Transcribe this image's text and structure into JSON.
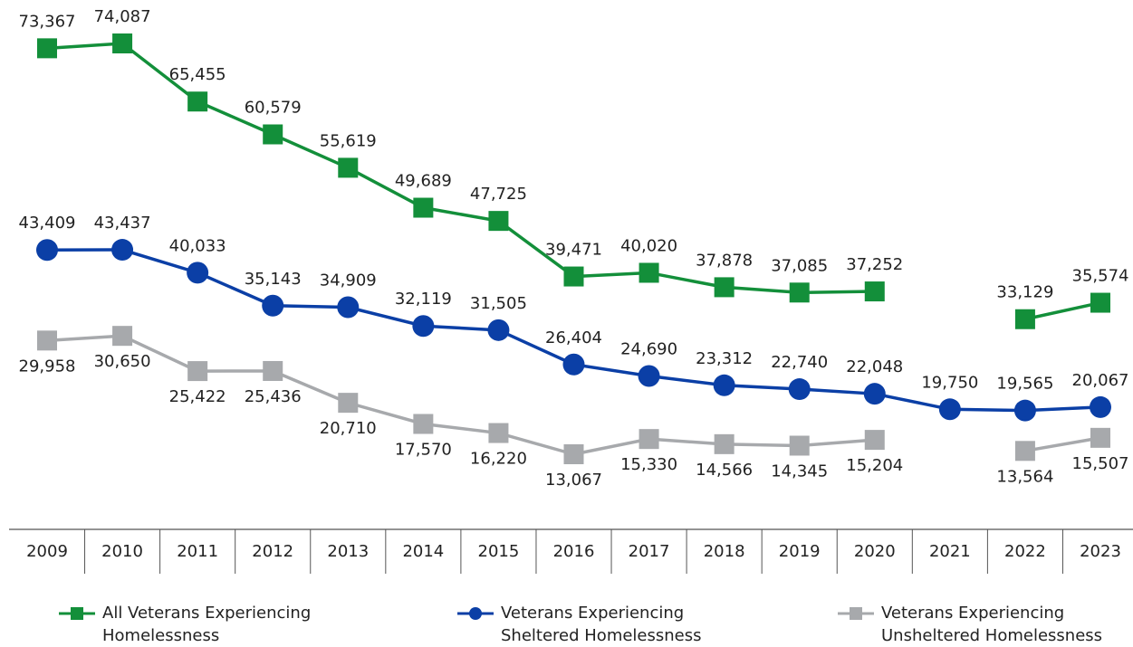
{
  "chart_data": {
    "type": "line",
    "categories": [
      "2009",
      "2010",
      "2011",
      "2012",
      "2013",
      "2014",
      "2015",
      "2016",
      "2017",
      "2018",
      "2019",
      "2020",
      "2021",
      "2022",
      "2023"
    ],
    "series": [
      {
        "name": "All Veterans Experiencing Homelessness",
        "color": "#138f3a",
        "marker": "square",
        "values": [
          73367,
          74087,
          65455,
          60579,
          55619,
          49689,
          47725,
          39471,
          40020,
          37878,
          37085,
          37252,
          null,
          33129,
          35574
        ],
        "value_labels": [
          "73,367",
          "74,087",
          "65,455",
          "60,579",
          "55,619",
          "49,689",
          "47,725",
          "39,471",
          "40,020",
          "37,878",
          "37,085",
          "37,252",
          null,
          "33,129",
          "35,574"
        ]
      },
      {
        "name": "Veterans Experiencing Sheltered Homelessness",
        "color": "#0b3fa6",
        "marker": "circle",
        "values": [
          43409,
          43437,
          40033,
          35143,
          34909,
          32119,
          31505,
          26404,
          24690,
          23312,
          22740,
          22048,
          19750,
          19565,
          20067
        ],
        "value_labels": [
          "43,409",
          "43,437",
          "40,033",
          "35,143",
          "34,909",
          "32,119",
          "31,505",
          "26,404",
          "24,690",
          "23,312",
          "22,740",
          "22,048",
          "19,750",
          "19,565",
          "20,067"
        ]
      },
      {
        "name": "Veterans Experiencing Unsheltered Homelessness",
        "color": "#a7a9ac",
        "marker": "square",
        "values": [
          29958,
          30650,
          25422,
          25436,
          20710,
          17570,
          16220,
          13067,
          15330,
          14566,
          14345,
          15204,
          null,
          13564,
          15507
        ],
        "value_labels": [
          "29,958",
          "30,650",
          "25,422",
          "25,436",
          "20,710",
          "17,570",
          "16,220",
          "13,067",
          "15,330",
          "14,566",
          "14,345",
          "15,204",
          null,
          "13,564",
          "15,507"
        ]
      }
    ]
  }
}
